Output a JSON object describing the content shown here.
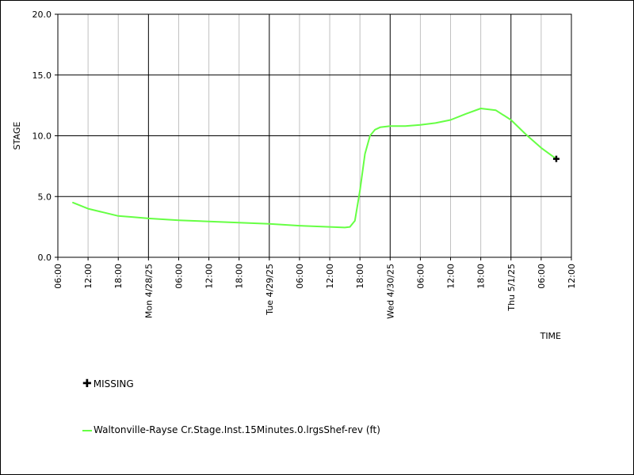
{
  "colors": {
    "series": "#66ff44",
    "major_grid": "#000000",
    "minor_grid": "#c0c0c0",
    "background": "#ffffff"
  },
  "chart_data": {
    "type": "line",
    "xlabel": "TIME",
    "ylabel": "STAGE",
    "xlim": [
      "2025-04-27T06:00",
      "2025-05-01T12:00"
    ],
    "ylim": [
      0,
      20
    ],
    "grid": true,
    "y_ticks": [
      "0.0",
      "5.0",
      "10.0",
      "15.0",
      "20.0"
    ],
    "x_ticks": [
      {
        "t": "2025-04-27T06:00",
        "label": "06:00",
        "major": false
      },
      {
        "t": "2025-04-27T12:00",
        "label": "12:00",
        "major": false
      },
      {
        "t": "2025-04-27T18:00",
        "label": "18:00",
        "major": false
      },
      {
        "t": "2025-04-28T00:00",
        "label": "Mon 4/28/25",
        "major": true
      },
      {
        "t": "2025-04-28T06:00",
        "label": "06:00",
        "major": false
      },
      {
        "t": "2025-04-28T12:00",
        "label": "12:00",
        "major": false
      },
      {
        "t": "2025-04-28T18:00",
        "label": "18:00",
        "major": false
      },
      {
        "t": "2025-04-29T00:00",
        "label": "Tue 4/29/25",
        "major": true
      },
      {
        "t": "2025-04-29T06:00",
        "label": "06:00",
        "major": false
      },
      {
        "t": "2025-04-29T12:00",
        "label": "12:00",
        "major": false
      },
      {
        "t": "2025-04-29T18:00",
        "label": "18:00",
        "major": false
      },
      {
        "t": "2025-04-30T00:00",
        "label": "Wed 4/30/25",
        "major": true
      },
      {
        "t": "2025-04-30T06:00",
        "label": "06:00",
        "major": false
      },
      {
        "t": "2025-04-30T12:00",
        "label": "12:00",
        "major": false
      },
      {
        "t": "2025-04-30T18:00",
        "label": "18:00",
        "major": false
      },
      {
        "t": "2025-05-01T00:00",
        "label": "Thu 5/1/25",
        "major": true
      },
      {
        "t": "2025-05-01T06:00",
        "label": "06:00",
        "major": false
      },
      {
        "t": "2025-05-01T12:00",
        "label": "12:00",
        "major": false
      }
    ],
    "series": [
      {
        "name": "Waltonville-Rayse Cr.Stage.Inst.15Minutes.0.lrgsShef-rev (ft)",
        "points": [
          [
            "2025-04-27T09:00",
            4.5
          ],
          [
            "2025-04-27T12:00",
            4.0
          ],
          [
            "2025-04-27T15:00",
            3.7
          ],
          [
            "2025-04-27T18:00",
            3.4
          ],
          [
            "2025-04-27T21:00",
            3.3
          ],
          [
            "2025-04-28T00:00",
            3.2
          ],
          [
            "2025-04-28T06:00",
            3.05
          ],
          [
            "2025-04-28T12:00",
            2.95
          ],
          [
            "2025-04-28T18:00",
            2.85
          ],
          [
            "2025-04-29T00:00",
            2.75
          ],
          [
            "2025-04-29T06:00",
            2.6
          ],
          [
            "2025-04-29T12:00",
            2.5
          ],
          [
            "2025-04-29T15:00",
            2.45
          ],
          [
            "2025-04-29T16:00",
            2.5
          ],
          [
            "2025-04-29T17:00",
            3.0
          ],
          [
            "2025-04-29T18:00",
            5.5
          ],
          [
            "2025-04-29T19:00",
            8.5
          ],
          [
            "2025-04-29T20:00",
            10.0
          ],
          [
            "2025-04-29T21:00",
            10.5
          ],
          [
            "2025-04-29T22:00",
            10.7
          ],
          [
            "2025-04-30T00:00",
            10.8
          ],
          [
            "2025-04-30T03:00",
            10.8
          ],
          [
            "2025-04-30T06:00",
            10.9
          ],
          [
            "2025-04-30T09:00",
            11.05
          ],
          [
            "2025-04-30T12:00",
            11.3
          ],
          [
            "2025-04-30T15:00",
            11.8
          ],
          [
            "2025-04-30T18:00",
            12.25
          ],
          [
            "2025-04-30T21:00",
            12.1
          ],
          [
            "2025-05-01T00:00",
            11.3
          ],
          [
            "2025-05-01T03:00",
            10.1
          ],
          [
            "2025-05-01T06:00",
            9.0
          ],
          [
            "2025-05-01T09:00",
            8.1
          ]
        ]
      }
    ],
    "missing_points": [
      [
        "2025-05-01T09:00",
        8.1
      ]
    ],
    "legend": [
      {
        "symbol": "cross",
        "label": "MISSING"
      },
      {
        "symbol": "line",
        "label": "Waltonville-Rayse Cr.Stage.Inst.15Minutes.0.lrgsShef-rev (ft)"
      }
    ],
    "legend_position": "bottom-left"
  }
}
